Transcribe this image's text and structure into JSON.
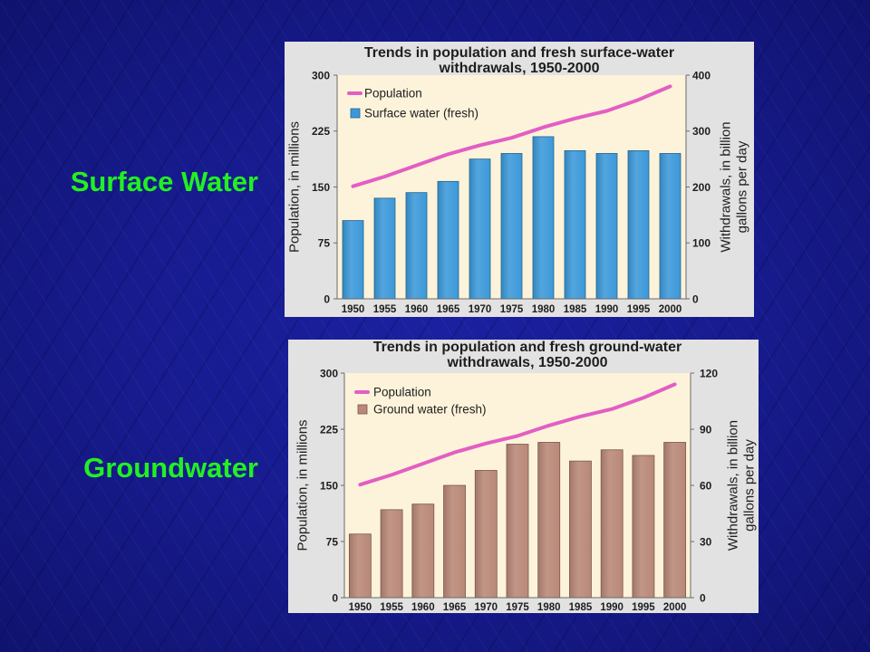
{
  "slide": {
    "labels": {
      "surface": "Surface Water",
      "ground": "Groundwater"
    },
    "label_color": "#22f022"
  },
  "chart_data": [
    {
      "type": "bar",
      "title_lines": [
        "Trends in population and fresh surface-water",
        "withdrawals, 1950-2000"
      ],
      "categories": [
        "1950",
        "1955",
        "1960",
        "1965",
        "1970",
        "1975",
        "1980",
        "1985",
        "1990",
        "1995",
        "2000"
      ],
      "ylabel": "Population, in millions",
      "ylim": [
        0,
        300
      ],
      "yticks": [
        0,
        75,
        150,
        225,
        300
      ],
      "y2label_lines": [
        "Withdrawals, in billion",
        "gallons per day"
      ],
      "y2lim": [
        0,
        400
      ],
      "y2ticks": [
        0,
        100,
        200,
        300,
        400
      ],
      "grid": false,
      "legend": "top-left",
      "plot_background": "#fdf3da",
      "series": [
        {
          "name": "Population",
          "type": "line",
          "axis": "left",
          "color": "#e35ec4",
          "values": [
            151,
            164,
            179,
            194,
            206,
            216,
            230,
            242,
            252,
            267,
            285
          ]
        },
        {
          "name": "Surface water (fresh)",
          "type": "bar",
          "axis": "right",
          "color": "#3b99d9",
          "values": [
            140,
            180,
            190,
            210,
            250,
            260,
            290,
            265,
            260,
            265,
            260
          ]
        }
      ]
    },
    {
      "type": "bar",
      "title_lines": [
        "Trends in population and fresh ground-water",
        "withdrawals, 1950-2000"
      ],
      "categories": [
        "1950",
        "1955",
        "1960",
        "1965",
        "1970",
        "1975",
        "1980",
        "1985",
        "1990",
        "1995",
        "2000"
      ],
      "ylabel": "Population, in millions",
      "ylim": [
        0,
        300
      ],
      "yticks": [
        0,
        75,
        150,
        225,
        300
      ],
      "y2label_lines": [
        "Withdrawals, in billion",
        "gallons per day"
      ],
      "y2lim": [
        0,
        120
      ],
      "y2ticks": [
        0,
        30,
        60,
        90,
        120
      ],
      "grid": false,
      "legend": "top-left",
      "plot_background": "#fdf3da",
      "series": [
        {
          "name": "Population",
          "type": "line",
          "axis": "left",
          "color": "#e35ec4",
          "values": [
            151,
            164,
            179,
            194,
            206,
            216,
            230,
            242,
            252,
            267,
            285
          ]
        },
        {
          "name": "Ground water (fresh)",
          "type": "bar",
          "axis": "right",
          "color": "#b98877",
          "values": [
            34,
            47,
            50,
            60,
            68,
            82,
            83,
            73,
            79,
            76,
            83
          ]
        }
      ]
    }
  ]
}
